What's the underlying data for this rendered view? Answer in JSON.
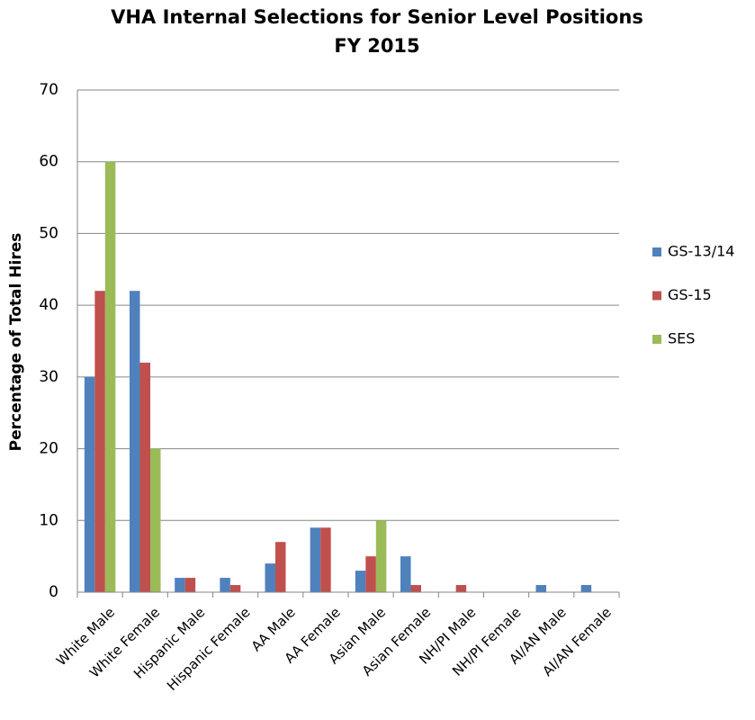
{
  "chart_data": {
    "type": "bar",
    "title": "VHA Internal Selections for Senior Level Positions",
    "subtitle": "FY 2015",
    "y_label": "Percentage of Total Hires",
    "categories": [
      "White Male",
      "White Female",
      "Hispanic Male",
      "Hispanic Female",
      "AA Male",
      "AA Female",
      "Asian Male",
      "Asian Female",
      "NH/PI Male",
      "NH/PI Female",
      "AI/AN Male",
      "AI/AN Female"
    ],
    "series": [
      {
        "name": "GS-13/14",
        "color": "#4f81bd",
        "values": [
          30,
          42,
          2,
          2,
          4,
          9,
          3,
          5,
          0,
          0,
          1,
          1
        ]
      },
      {
        "name": "GS-15",
        "color": "#c0504d",
        "values": [
          42,
          32,
          2,
          1,
          7,
          9,
          5,
          1,
          1,
          0,
          0,
          0
        ]
      },
      {
        "name": "SES",
        "color": "#9bbb59",
        "values": [
          60,
          20,
          0,
          0,
          0,
          0,
          10,
          0,
          0,
          0,
          0,
          0
        ]
      }
    ],
    "ylim": [
      0,
      70
    ],
    "yticks": [
      0,
      10,
      20,
      30,
      40,
      50,
      60,
      70
    ],
    "grid": true,
    "legend": "right"
  }
}
